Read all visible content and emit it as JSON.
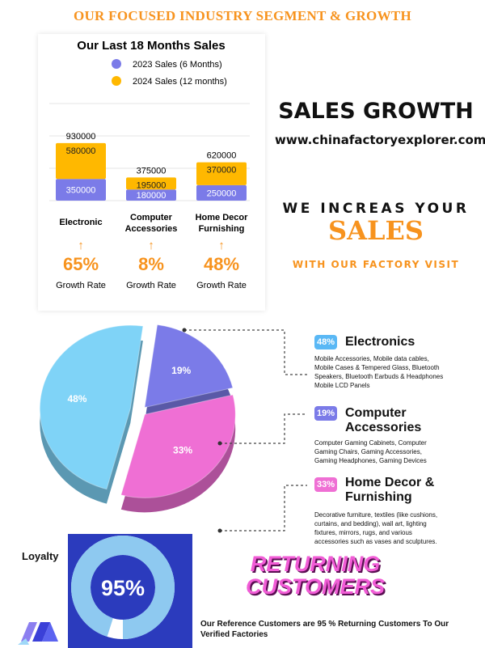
{
  "page_title": "OUR FOCUSED  INDUSTRY SEGMENT &  GROWTH",
  "side": {
    "heading": "SALES GROWTH",
    "website": "www.chinafactoryexplorer.com",
    "increase_line": "WE INCREAS YOUR",
    "increase_big": "SALES",
    "factory_visit": "WITH OUR FACTORY VISIT"
  },
  "chart_data": [
    {
      "type": "bar",
      "title": "Our Last 18 Months Sales",
      "stacked": true,
      "categories": [
        "Electronic",
        "Computer Accessories",
        "Home Decor Furnishing"
      ],
      "category_lines": [
        [
          "Electronic"
        ],
        [
          "Computer",
          "Accessories"
        ],
        [
          "Home Decor",
          "Furnishing"
        ]
      ],
      "series": [
        {
          "name": "2023 Sales (6 Months)",
          "color": "#7b7be8",
          "values": [
            350000,
            180000,
            250000
          ]
        },
        {
          "name": "2024 Sales (12 months)",
          "color": "#ffb800",
          "values": [
            580000,
            195000,
            370000
          ]
        }
      ],
      "totals": [
        930000,
        375000,
        620000
      ],
      "legend": "top",
      "growth": {
        "arrow": "↑",
        "values": [
          "65%",
          "8%",
          "48%"
        ],
        "label": "Growth Rate"
      }
    },
    {
      "type": "pie",
      "labels": [
        "Electronics",
        "Computer Accessories",
        "Home Decor & Furnishing"
      ],
      "values": [
        48,
        19,
        33
      ],
      "display": [
        "48%",
        "19%",
        "33%"
      ],
      "colors": [
        "#7fd3f7",
        "#7b7be8",
        "#ef6fd4"
      ]
    }
  ],
  "segments": [
    {
      "badge": "48%",
      "title": "Electronics",
      "title_lines": [
        "Electronics"
      ],
      "color": "#5ab8f5",
      "desc_lines": [
        "Mobile Accessories, Mobile data cables,",
        "Mobile Cases & Tempered Glass, Bluetooth",
        "Speakers, Bluetooth Earbuds & Headphones",
        "Mobile LCD Panels"
      ]
    },
    {
      "badge": "19%",
      "title": "Computer Accessories",
      "title_lines": [
        "Computer",
        "Accessories"
      ],
      "color": "#7b7be8",
      "desc_lines": [
        "Computer Gaming Cabinets, Computer",
        "Gaming Chairs, Gaming Accessories,",
        "Gaming Headphones, Gaming Devices"
      ]
    },
    {
      "badge": "33%",
      "title": "Home Decor & Furnishing",
      "title_lines": [
        "Home Decor &",
        "Furnishing"
      ],
      "color": "#ef6fd4",
      "desc_lines": [
        "Decorative furniture, textiles (like cushions,",
        "curtains, and bedding), wall art, lighting",
        "fixtures, mirrors, rugs, and various",
        "accessories such as vases and sculptures."
      ]
    }
  ],
  "loyalty": {
    "label": "Loyalty",
    "percent": 95,
    "percent_text": "95%",
    "title_lines": [
      "RETURNING",
      "CUSTOMERS"
    ],
    "caption": "Our Reference Customers are 95 % Returning Customers To Our Verified Factories"
  }
}
